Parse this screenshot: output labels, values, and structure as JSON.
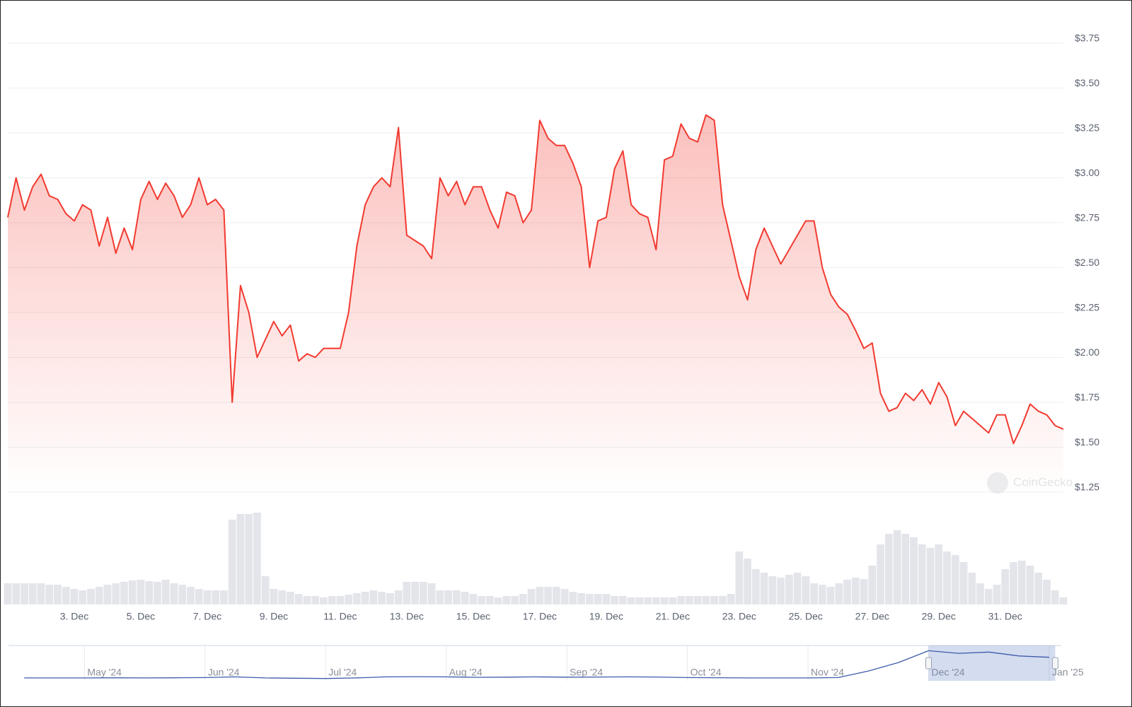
{
  "chart_data": [
    {
      "type": "line",
      "watermark": "CoinGecko",
      "color": "#f23a30",
      "volume_color": "#e3e5ea",
      "xlim": [
        1,
        32.75
      ],
      "xticks": [
        {
          "value": 3,
          "label": "3. Dec"
        },
        {
          "value": 5,
          "label": "5. Dec"
        },
        {
          "value": 7,
          "label": "7. Dec"
        },
        {
          "value": 9,
          "label": "9. Dec"
        },
        {
          "value": 11,
          "label": "11. Dec"
        },
        {
          "value": 13,
          "label": "13. Dec"
        },
        {
          "value": 15,
          "label": "15. Dec"
        },
        {
          "value": 17,
          "label": "17. Dec"
        },
        {
          "value": 19,
          "label": "19. Dec"
        },
        {
          "value": 21,
          "label": "21. Dec"
        },
        {
          "value": 23,
          "label": "23. Dec"
        },
        {
          "value": 25,
          "label": "25. Dec"
        },
        {
          "value": 27,
          "label": "27. Dec"
        },
        {
          "value": 29,
          "label": "29. Dec"
        },
        {
          "value": 31,
          "label": "31. Dec"
        }
      ],
      "ylim": [
        1.25,
        3.75
      ],
      "yticks": [
        {
          "value": 1.25,
          "label": "$1.25"
        },
        {
          "value": 1.5,
          "label": "$1.50"
        },
        {
          "value": 1.75,
          "label": "$1.75"
        },
        {
          "value": 2,
          "label": "$2.00"
        },
        {
          "value": 2.25,
          "label": "$2.25"
        },
        {
          "value": 2.5,
          "label": "$2.50"
        },
        {
          "value": 2.75,
          "label": "$2.75"
        },
        {
          "value": 3,
          "label": "$3.00"
        },
        {
          "value": 3.25,
          "label": "$3.25"
        },
        {
          "value": 3.5,
          "label": "$3.50"
        },
        {
          "value": 3.75,
          "label": "$3.75"
        }
      ],
      "grid": true,
      "x": [
        1,
        1.25,
        1.5,
        1.75,
        2,
        2.25,
        2.5,
        2.75,
        3,
        3.25,
        3.5,
        3.75,
        4,
        4.25,
        4.5,
        4.75,
        5,
        5.25,
        5.5,
        5.75,
        6,
        6.25,
        6.5,
        6.75,
        7,
        7.25,
        7.5,
        7.75,
        8,
        8.25,
        8.5,
        8.75,
        9,
        9.25,
        9.5,
        9.75,
        10,
        10.25,
        10.5,
        10.75,
        11,
        11.25,
        11.5,
        11.75,
        12,
        12.25,
        12.5,
        12.75,
        13,
        13.25,
        13.5,
        13.75,
        14,
        14.25,
        14.5,
        14.75,
        15,
        15.25,
        15.5,
        15.75,
        16,
        16.25,
        16.5,
        16.75,
        17,
        17.25,
        17.5,
        17.75,
        18,
        18.25,
        18.5,
        18.75,
        19,
        19.25,
        19.5,
        19.75,
        20,
        20.25,
        20.5,
        20.75,
        21,
        21.25,
        21.5,
        21.75,
        22,
        22.25,
        22.5,
        22.75,
        23,
        23.25,
        23.5,
        23.75,
        24,
        24.25,
        24.5,
        24.75,
        25,
        25.25,
        25.5,
        25.75,
        26,
        26.25,
        26.5,
        26.75,
        27,
        27.25,
        27.5,
        27.75,
        28,
        28.25,
        28.5,
        28.75,
        29,
        29.25,
        29.5,
        29.75,
        30,
        30.25,
        30.5,
        30.75,
        31,
        31.25,
        31.5,
        31.75,
        32,
        32.25,
        32.5,
        32.75
      ],
      "values": [
        2.78,
        3.0,
        2.82,
        2.95,
        3.02,
        2.9,
        2.88,
        2.8,
        2.76,
        2.85,
        2.82,
        2.62,
        2.78,
        2.58,
        2.72,
        2.6,
        2.88,
        2.98,
        2.88,
        2.97,
        2.9,
        2.78,
        2.85,
        3.0,
        2.85,
        2.88,
        2.82,
        1.75,
        2.4,
        2.25,
        2.0,
        2.1,
        2.2,
        2.12,
        2.18,
        1.98,
        2.02,
        2.0,
        2.05,
        2.05,
        2.05,
        2.25,
        2.62,
        2.85,
        2.95,
        3.0,
        2.95,
        3.28,
        2.68,
        2.65,
        2.62,
        2.55,
        3.0,
        2.9,
        2.98,
        2.85,
        2.95,
        2.95,
        2.82,
        2.72,
        2.92,
        2.9,
        2.75,
        2.82,
        3.32,
        3.22,
        3.18,
        3.18,
        3.08,
        2.95,
        2.5,
        2.76,
        2.78,
        3.05,
        3.15,
        2.85,
        2.8,
        2.78,
        2.6,
        3.1,
        3.12,
        3.3,
        3.22,
        3.2,
        3.35,
        3.32,
        2.85,
        2.65,
        2.45,
        2.32,
        2.6,
        2.72,
        2.62,
        2.52,
        2.6,
        2.68,
        2.76,
        2.76,
        2.5,
        2.35,
        2.28,
        2.24,
        2.15,
        2.05,
        2.08,
        1.8,
        1.7,
        1.72,
        1.8,
        1.76,
        1.82,
        1.74,
        1.86,
        1.78,
        1.62,
        1.7,
        1.66,
        1.62,
        1.58,
        1.68,
        1.68,
        1.52,
        1.62,
        1.74,
        1.7,
        1.68,
        1.62,
        1.6
      ],
      "volume": [
        30,
        30,
        30,
        30,
        30,
        28,
        28,
        25,
        22,
        20,
        22,
        25,
        28,
        30,
        32,
        34,
        35,
        33,
        32,
        35,
        30,
        28,
        25,
        22,
        20,
        20,
        20,
        120,
        128,
        128,
        130,
        40,
        22,
        20,
        18,
        15,
        12,
        12,
        10,
        12,
        12,
        14,
        16,
        18,
        20,
        18,
        16,
        20,
        32,
        32,
        32,
        30,
        20,
        20,
        20,
        18,
        15,
        12,
        12,
        10,
        12,
        12,
        15,
        22,
        25,
        25,
        25,
        22,
        18,
        16,
        15,
        15,
        15,
        12,
        12,
        10,
        10,
        10,
        10,
        10,
        10,
        12,
        12,
        12,
        12,
        12,
        12,
        15,
        75,
        65,
        50,
        45,
        40,
        38,
        42,
        45,
        40,
        30,
        28,
        25,
        30,
        35,
        38,
        36,
        55,
        85,
        100,
        105,
        100,
        95,
        85,
        80,
        85,
        75,
        70,
        60,
        45,
        30,
        22,
        28,
        50,
        60,
        62,
        55,
        45,
        35,
        20,
        10
      ]
    },
    {
      "type": "line",
      "color": "#3d5ba9",
      "xlim": [
        4.37,
        13.1
      ],
      "ylim": [
        0.3,
        3.0
      ],
      "range": [
        12,
        13.05
      ],
      "xticks": [
        {
          "value": 5,
          "label": "May '24"
        },
        {
          "value": 6,
          "label": "Jun '24"
        },
        {
          "value": 7,
          "label": "Jul '24"
        },
        {
          "value": 8,
          "label": "Aug '24"
        },
        {
          "value": 9,
          "label": "Sep '24"
        },
        {
          "value": 10,
          "label": "Oct '24"
        },
        {
          "value": 11,
          "label": "Nov '24"
        },
        {
          "value": 12,
          "label": "Dec '24"
        },
        {
          "value": 13,
          "label": "Jan '25"
        }
      ],
      "x": [
        4.5,
        4.75,
        5,
        5.25,
        5.5,
        5.75,
        6,
        6.25,
        6.5,
        6.75,
        7,
        7.25,
        7.5,
        7.75,
        8,
        8.25,
        8.5,
        8.75,
        9,
        9.25,
        9.5,
        9.75,
        10,
        10.25,
        10.5,
        10.75,
        11,
        11.25,
        11.5,
        11.75,
        12,
        12.25,
        12.5,
        12.75,
        13
      ],
      "values": [
        0.52,
        0.52,
        0.52,
        0.53,
        0.52,
        0.53,
        0.55,
        0.6,
        0.52,
        0.5,
        0.48,
        0.52,
        0.6,
        0.62,
        0.6,
        0.57,
        0.58,
        0.6,
        0.58,
        0.59,
        0.6,
        0.59,
        0.55,
        0.54,
        0.52,
        0.52,
        0.52,
        0.55,
        1.05,
        1.7,
        2.6,
        2.4,
        2.5,
        2.2,
        2.1
      ]
    }
  ]
}
